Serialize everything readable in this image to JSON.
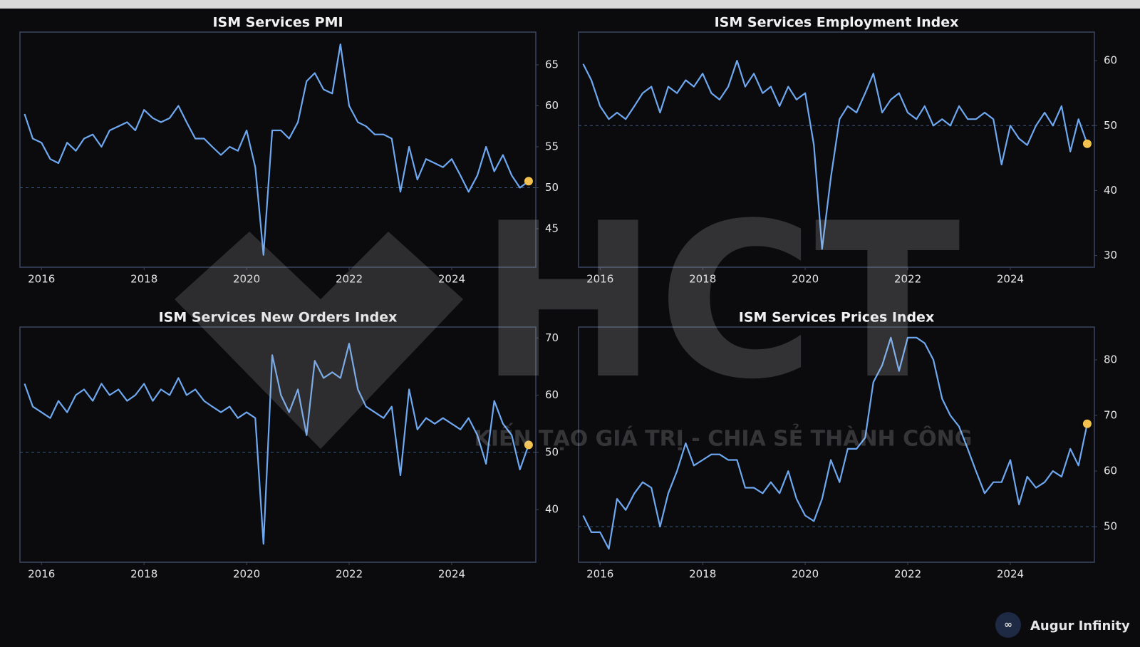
{
  "chart_data": [
    {
      "type": "line",
      "title": "ISM Services PMI",
      "color": "#6ea8f0",
      "last_point_color": "#f2c14e",
      "reference": 50,
      "xlim": [
        2015.58,
        2025.64
      ],
      "xticks": [
        2016,
        2018,
        2020,
        2022,
        2024
      ],
      "ylim": [
        40.3,
        69
      ],
      "yticks": [
        45,
        50,
        55,
        60,
        65
      ],
      "x": [
        2015.67,
        2015.83,
        2016,
        2016.17,
        2016.33,
        2016.5,
        2016.67,
        2016.83,
        2017,
        2017.17,
        2017.33,
        2017.5,
        2017.67,
        2017.83,
        2018,
        2018.17,
        2018.33,
        2018.5,
        2018.67,
        2018.83,
        2019,
        2019.17,
        2019.33,
        2019.5,
        2019.67,
        2019.83,
        2020,
        2020.17,
        2020.33,
        2020.5,
        2020.67,
        2020.83,
        2021,
        2021.17,
        2021.33,
        2021.5,
        2021.67,
        2021.83,
        2022,
        2022.17,
        2022.33,
        2022.5,
        2022.67,
        2022.83,
        2023,
        2023.17,
        2023.33,
        2023.5,
        2023.67,
        2023.83,
        2024,
        2024.17,
        2024.33,
        2024.5,
        2024.67,
        2024.83,
        2025,
        2025.17,
        2025.33,
        2025.5
      ],
      "values": [
        59,
        56,
        55.5,
        53.5,
        53,
        55.5,
        54.5,
        56,
        56.5,
        55,
        57,
        57.5,
        58,
        57,
        59.5,
        58.5,
        58,
        58.5,
        60,
        58,
        56,
        56,
        55,
        54,
        55,
        54.5,
        57,
        52.5,
        41.8,
        57,
        57,
        56,
        58,
        63,
        64,
        62,
        61.5,
        67.5,
        60,
        58,
        57.5,
        56.5,
        56.5,
        56,
        49.5,
        55,
        51,
        53.5,
        53,
        52.5,
        53.5,
        51.5,
        49.5,
        51.5,
        55,
        52,
        54,
        51.5,
        50,
        50.8
      ]
    },
    {
      "type": "line",
      "title": "ISM Services Employment Index",
      "color": "#6ea8f0",
      "last_point_color": "#f2c14e",
      "reference": 50,
      "xlim": [
        2015.58,
        2025.64
      ],
      "xticks": [
        2016,
        2018,
        2020,
        2022,
        2024
      ],
      "ylim": [
        28.2,
        64.4
      ],
      "yticks": [
        30,
        40,
        50,
        60
      ],
      "x": [
        2015.67,
        2015.83,
        2016,
        2016.17,
        2016.33,
        2016.5,
        2016.67,
        2016.83,
        2017,
        2017.17,
        2017.33,
        2017.5,
        2017.67,
        2017.83,
        2018,
        2018.17,
        2018.33,
        2018.5,
        2018.67,
        2018.83,
        2019,
        2019.17,
        2019.33,
        2019.5,
        2019.67,
        2019.83,
        2020,
        2020.17,
        2020.33,
        2020.5,
        2020.67,
        2020.83,
        2021,
        2021.17,
        2021.33,
        2021.5,
        2021.67,
        2021.83,
        2022,
        2022.17,
        2022.33,
        2022.5,
        2022.67,
        2022.83,
        2023,
        2023.17,
        2023.33,
        2023.5,
        2023.67,
        2023.83,
        2024,
        2024.17,
        2024.33,
        2024.5,
        2024.67,
        2024.83,
        2025,
        2025.17,
        2025.33,
        2025.5
      ],
      "values": [
        59.5,
        57,
        53,
        51,
        52,
        51,
        53,
        55,
        56,
        52,
        56,
        55,
        57,
        56,
        58,
        55,
        54,
        56,
        60,
        56,
        58,
        55,
        56,
        53,
        56,
        54,
        55,
        47,
        31,
        42,
        51,
        53,
        52,
        55,
        58,
        52,
        54,
        55,
        52,
        51,
        53,
        50,
        51,
        50,
        53,
        51,
        51,
        52,
        51,
        44,
        50,
        48,
        47,
        50,
        52,
        50,
        53,
        46,
        51,
        47.2
      ]
    },
    {
      "type": "line",
      "title": "ISM Services New Orders Index",
      "color": "#6ea8f0",
      "last_point_color": "#f2c14e",
      "reference": 50,
      "xlim": [
        2015.58,
        2025.64
      ],
      "xticks": [
        2016,
        2018,
        2020,
        2022,
        2024
      ],
      "ylim": [
        30.8,
        71.9
      ],
      "yticks": [
        40,
        50,
        60,
        70
      ],
      "x": [
        2015.67,
        2015.83,
        2016,
        2016.17,
        2016.33,
        2016.5,
        2016.67,
        2016.83,
        2017,
        2017.17,
        2017.33,
        2017.5,
        2017.67,
        2017.83,
        2018,
        2018.17,
        2018.33,
        2018.5,
        2018.67,
        2018.83,
        2019,
        2019.17,
        2019.33,
        2019.5,
        2019.67,
        2019.83,
        2020,
        2020.17,
        2020.33,
        2020.5,
        2020.67,
        2020.83,
        2021,
        2021.17,
        2021.33,
        2021.5,
        2021.67,
        2021.83,
        2022,
        2022.17,
        2022.33,
        2022.5,
        2022.67,
        2022.83,
        2023,
        2023.17,
        2023.33,
        2023.5,
        2023.67,
        2023.83,
        2024,
        2024.17,
        2024.33,
        2024.5,
        2024.67,
        2024.83,
        2025,
        2025.17,
        2025.33,
        2025.5
      ],
      "values": [
        62,
        58,
        57,
        56,
        59,
        57,
        60,
        61,
        59,
        62,
        60,
        61,
        59,
        60,
        62,
        59,
        61,
        60,
        63,
        60,
        61,
        59,
        58,
        57,
        58,
        56,
        57,
        56,
        34,
        67,
        60,
        57,
        61,
        53,
        66,
        63,
        64,
        63,
        69,
        61,
        58,
        57,
        56,
        58,
        46,
        61,
        54,
        56,
        55,
        56,
        55,
        54,
        56,
        53,
        48,
        59,
        55,
        53,
        47,
        51.3
      ]
    },
    {
      "type": "line",
      "title": "ISM Services Prices Index",
      "color": "#6ea8f0",
      "last_point_color": "#f2c14e",
      "reference": 50,
      "xlim": [
        2015.58,
        2025.64
      ],
      "xticks": [
        2016,
        2018,
        2020,
        2022,
        2024
      ],
      "ylim": [
        43.6,
        85.9
      ],
      "yticks": [
        50,
        60,
        70,
        80
      ],
      "x": [
        2015.67,
        2015.83,
        2016,
        2016.17,
        2016.33,
        2016.5,
        2016.67,
        2016.83,
        2017,
        2017.17,
        2017.33,
        2017.5,
        2017.67,
        2017.83,
        2018,
        2018.17,
        2018.33,
        2018.5,
        2018.67,
        2018.83,
        2019,
        2019.17,
        2019.33,
        2019.5,
        2019.67,
        2019.83,
        2020,
        2020.17,
        2020.33,
        2020.5,
        2020.67,
        2020.83,
        2021,
        2021.17,
        2021.33,
        2021.5,
        2021.67,
        2021.83,
        2022,
        2022.17,
        2022.33,
        2022.5,
        2022.67,
        2022.83,
        2023,
        2023.17,
        2023.33,
        2023.5,
        2023.67,
        2023.83,
        2024,
        2024.17,
        2024.33,
        2024.5,
        2024.67,
        2024.83,
        2025,
        2025.17,
        2025.33,
        2025.5
      ],
      "values": [
        52,
        49,
        49,
        46,
        55,
        53,
        56,
        58,
        57,
        50,
        56,
        60,
        65,
        61,
        62,
        63,
        63,
        62,
        62,
        57,
        57,
        56,
        58,
        56,
        60,
        55,
        52,
        51,
        55,
        62,
        58,
        64,
        64,
        66,
        76,
        79,
        84,
        78,
        84,
        84,
        83,
        80,
        73,
        70,
        68,
        64,
        60,
        56,
        58,
        58,
        62,
        54,
        59,
        57,
        58,
        60,
        59,
        64,
        61,
        68.5
      ]
    }
  ],
  "watermark": {
    "logo": "HCT",
    "slogan": "KIẾN TẠO GIÁ TRỊ - CHIA SẺ THÀNH CÔNG"
  },
  "footer": {
    "brand": "Augur Infinity"
  }
}
